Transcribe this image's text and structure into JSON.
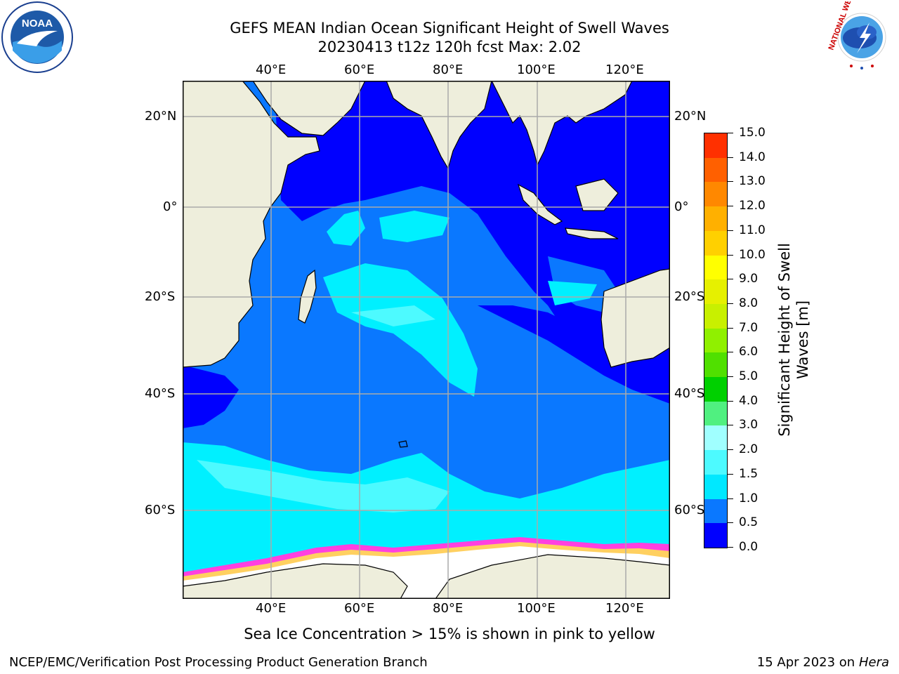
{
  "header": {
    "title_line1": "GEFS MEAN Indian Ocean Significant Height of Swell Waves",
    "title_line2": "20230413 t12z 120h fcst   Max: 2.02"
  },
  "logos": {
    "left": {
      "name": "noaa-logo",
      "text": "NOAA"
    },
    "right": {
      "name": "nws-logo",
      "text": "NATIONAL WEATHER SERVICE"
    }
  },
  "map": {
    "lon_labels": [
      "40°E",
      "60°E",
      "80°E",
      "100°E",
      "120°E"
    ],
    "lat_labels": [
      "20°N",
      "0°",
      "20°S",
      "40°S",
      "60°S"
    ],
    "colors": {
      "land": "#eeeedc",
      "ocean_low": "#0000ff",
      "ocean_mid": "#0a78ff",
      "ocean_high": "#00f0ff",
      "ice": "#ffffff",
      "grid": "#aaaaaa"
    }
  },
  "colorbar": {
    "label_line1": "Significant Height of Swell",
    "label_line2": "Waves [m]",
    "ticks": [
      "0.0",
      "0.5",
      "1.0",
      "1.5",
      "2.0",
      "3.0",
      "4.0",
      "5.0",
      "6.0",
      "7.0",
      "8.0",
      "9.0",
      "10.0",
      "11.0",
      "12.0",
      "13.0",
      "14.0",
      "15.0"
    ],
    "colors": [
      "#0000ff",
      "#0a78ff",
      "#00e8ff",
      "#4dfaff",
      "#a0ffff",
      "#50f080",
      "#00d000",
      "#50e000",
      "#90f000",
      "#c8f000",
      "#e6f000",
      "#ffff00",
      "#ffd000",
      "#ffb000",
      "#ff8800",
      "#ff6000",
      "#ff3000",
      "#ff0000"
    ]
  },
  "caption": "Sea Ice Concentration > 15% is shown in pink to yellow",
  "footer": {
    "left": "NCEP/EMC/Verification Post Processing Product Generation Branch",
    "right_date": "15 Apr 2023 on ",
    "right_host": "Hera"
  }
}
